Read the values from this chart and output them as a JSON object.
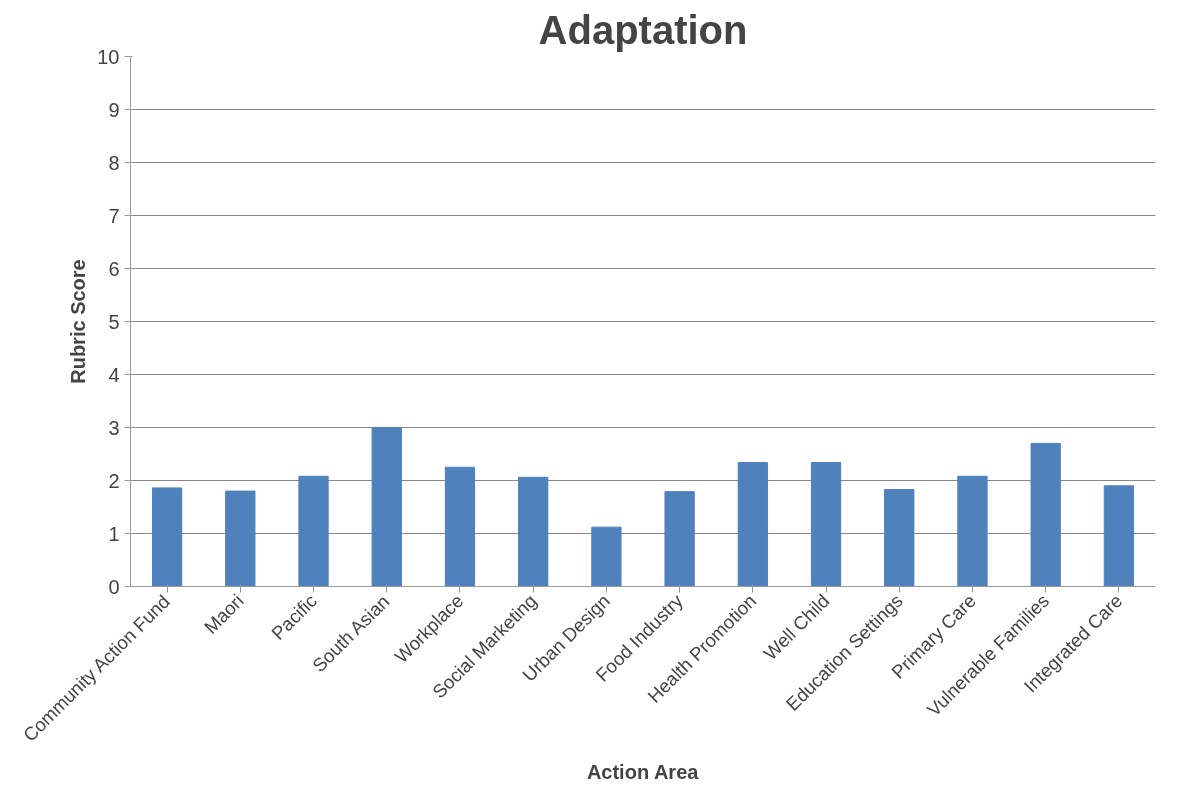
{
  "chart_data": {
    "type": "bar",
    "title": "Adaptation",
    "xlabel": "Action Area",
    "ylabel": "Rubric Score",
    "categories": [
      "Community Action Fund",
      "Maori",
      "Pacific",
      "South Asian",
      "Workplace",
      "Social Marketing",
      "Urban Design",
      "Food Industry",
      "Health Promotion",
      "Well Child",
      "Education Settings",
      "Primary Care",
      "Vulnerable Families",
      "Integrated Care"
    ],
    "values": [
      1.86,
      1.8,
      2.08,
      3.0,
      2.25,
      2.06,
      1.12,
      1.79,
      2.34,
      2.34,
      1.83,
      2.08,
      2.7,
      1.9
    ],
    "color": "#4f81bd",
    "ylim": [
      0,
      10
    ],
    "yticks": [
      0,
      1,
      2,
      3,
      4,
      5,
      6,
      7,
      8,
      9,
      10
    ],
    "grid": "y"
  }
}
